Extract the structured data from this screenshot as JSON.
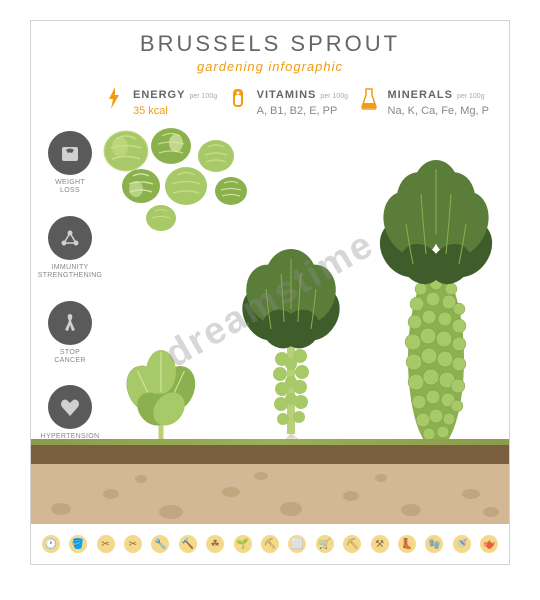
{
  "title": "BRUSSELS SPROUT",
  "subtitle": "gardening infographic",
  "nutrients": {
    "per_label": "per 100g",
    "energy": {
      "label": "ENERGY",
      "value": "35 kcal",
      "value_color": "#f39c12",
      "icon_color": "#f39c12"
    },
    "vitamins": {
      "label": "VITAMINS",
      "value": "A, B1, B2, E, PP",
      "value_color": "#888",
      "icon_color": "#f39c12"
    },
    "minerals": {
      "label": "MINERALS",
      "value": "Na, K, Ca, Fe, Mg, P",
      "value_color": "#888",
      "icon_color": "#f39c12"
    }
  },
  "benefits": [
    {
      "name": "weight-loss",
      "label": "WEIGHT\nLOSS"
    },
    {
      "name": "immunity",
      "label": "IMMUNITY\nSTRENGTHENING"
    },
    {
      "name": "cancer",
      "label": "STOP\nCANCER"
    },
    {
      "name": "hypertension",
      "label": "HYPERTENSION\nTREATMENT"
    }
  ],
  "colors": {
    "benefit_circle": "#5a5a5a",
    "benefit_icon": "#d0d0d0",
    "soil_dark": "#7a5f3e",
    "soil_light": "#d4b896",
    "grass": "#8a9c4a",
    "leaf_light": "#a8c968",
    "leaf_mid": "#8bb04e",
    "leaf_dark": "#5a7d3a",
    "leaf_darker": "#3e5d2a",
    "sprout_light": "#c8dd8a",
    "sprout_mid": "#a8c968",
    "sprout_vein": "#d8e8a8",
    "stem": "#b8d078",
    "tool_bg": "#f5d98a",
    "tool_icon": "#8a7040",
    "root": "#e0d5c0"
  },
  "tools": [
    "🕐",
    "🪣",
    "✂",
    "✂",
    "🔧",
    "🔨",
    "☘",
    "🌱",
    "⛏",
    "⬜",
    "🛒",
    "⛏",
    "⚒",
    "👢",
    "🧤",
    "🚿",
    "🫖"
  ],
  "watermark": "dreamstime"
}
